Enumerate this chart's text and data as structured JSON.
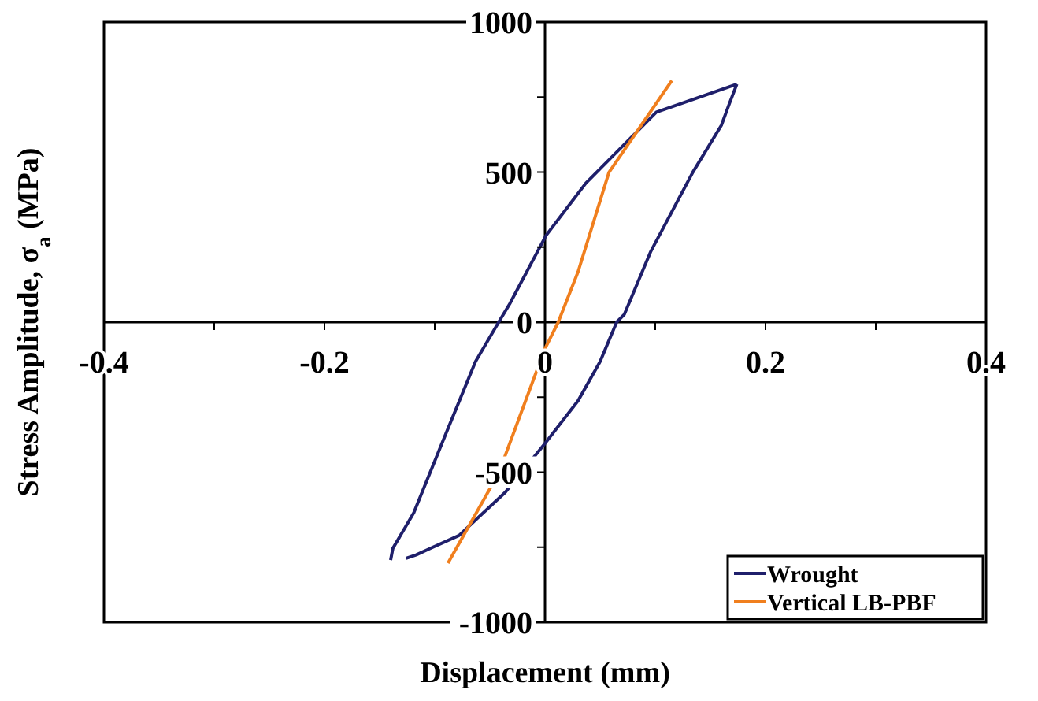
{
  "chart_data": {
    "type": "line",
    "xlabel": "Displacement (mm)",
    "ylabel": "Stress Amplitude, σ$_{a}$ (MPa)",
    "xlim": [
      -0.4,
      0.4
    ],
    "ylim": [
      -1000,
      1000
    ],
    "xticks": [
      -0.4,
      {
        "value": -0.3,
        "label": null
      },
      -0.2,
      {
        "value": -0.1,
        "label": null
      },
      0,
      {
        "value": 0.1,
        "label": null
      },
      0.2,
      {
        "value": 0.3,
        "label": null
      },
      0.4
    ],
    "yticks": [
      -1000,
      {
        "value": -750,
        "label": null
      },
      -500,
      {
        "value": -250,
        "label": null
      },
      0,
      {
        "value": 250,
        "label": null
      },
      500,
      {
        "value": 750,
        "label": null
      },
      1000
    ],
    "grid": false,
    "legend": "bottom right",
    "marker": "none",
    "line_style": "solid",
    "series": [
      {
        "name": "Wrought",
        "color": "#1f1f6b",
        "x": [
          -0.14,
          -0.138,
          -0.119,
          -0.09,
          -0.063,
          -0.042,
          -0.032,
          0.001,
          0.037,
          0.101,
          0.174
        ],
        "values": [
          -793,
          -754,
          -635,
          -373,
          -131,
          0,
          61,
          289,
          463,
          700,
          793
        ]
      },
      {
        "color": "#1f1f6b",
        "x": [
          -0.126,
          -0.117,
          -0.104,
          -0.078,
          -0.036,
          0,
          0.03,
          0.05,
          0.065,
          0.072,
          0.096,
          0.134,
          0.16,
          0.167,
          0.174
        ],
        "values": [
          -787,
          -776,
          -754,
          -711,
          -567,
          -404,
          -262,
          -131,
          0,
          26,
          236,
          499,
          656,
          726,
          793
        ]
      },
      {
        "name": "Vertical LB-PBF",
        "color": "#f07f1e",
        "x": [
          -0.088,
          -0.042,
          0,
          0.012,
          0.03,
          0.058,
          0.115
        ],
        "values": [
          -803,
          -503,
          -88,
          0,
          168,
          499,
          805
        ]
      }
    ]
  }
}
